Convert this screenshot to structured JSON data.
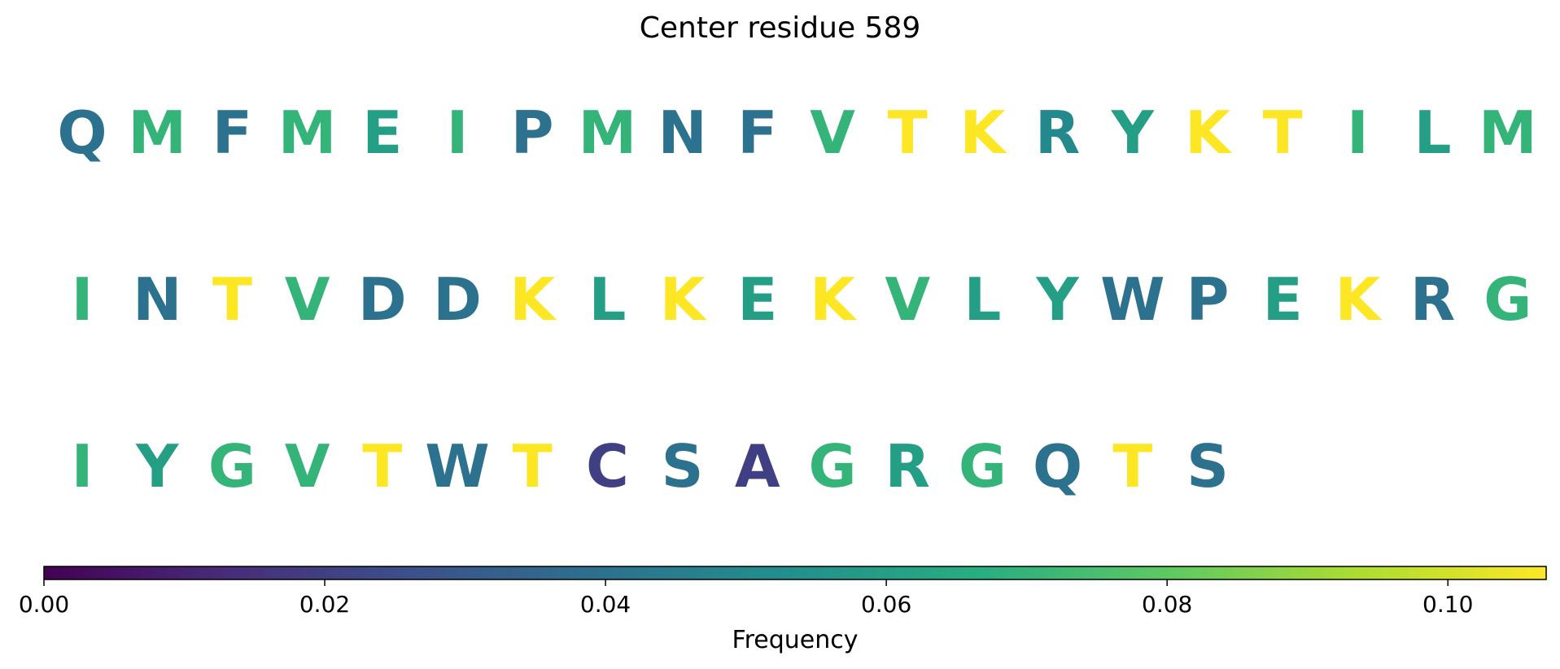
{
  "chart_data": {
    "type": "table",
    "title": "Center residue 589",
    "rows": [
      [
        "Q",
        "M",
        "F",
        "M",
        "E",
        "I",
        "P",
        "M",
        "N",
        "F",
        "V",
        "T",
        "K",
        "R",
        "Y",
        "K",
        "T",
        "I",
        "L",
        "M"
      ],
      [
        "I",
        "N",
        "T",
        "V",
        "D",
        "D",
        "K",
        "L",
        "K",
        "E",
        "K",
        "V",
        "L",
        "Y",
        "W",
        "P",
        "E",
        "K",
        "R",
        "G"
      ],
      [
        "I",
        "Y",
        "G",
        "V",
        "T",
        "W",
        "T",
        "C",
        "S",
        "A",
        "G",
        "R",
        "G",
        "Q",
        "T",
        "S"
      ]
    ],
    "frequencies": [
      [
        0.04,
        0.07,
        0.04,
        0.07,
        0.06,
        0.07,
        0.04,
        0.07,
        0.04,
        0.04,
        0.07,
        0.107,
        0.107,
        0.05,
        0.06,
        0.107,
        0.107,
        0.07,
        0.06,
        0.07
      ],
      [
        0.07,
        0.04,
        0.107,
        0.07,
        0.04,
        0.04,
        0.107,
        0.06,
        0.107,
        0.06,
        0.107,
        0.07,
        0.06,
        0.06,
        0.04,
        0.04,
        0.06,
        0.107,
        0.04,
        0.07
      ],
      [
        0.07,
        0.06,
        0.07,
        0.07,
        0.107,
        0.04,
        0.107,
        0.02,
        0.04,
        0.02,
        0.07,
        0.06,
        0.07,
        0.04,
        0.107,
        0.04
      ]
    ],
    "colorbar": {
      "label": "Frequency",
      "range": [
        0,
        0.107
      ],
      "ticks": [
        0.0,
        0.02,
        0.04,
        0.06,
        0.08,
        0.1
      ],
      "tick_labels": [
        "0.00",
        "0.02",
        "0.04",
        "0.06",
        "0.08",
        "0.10"
      ],
      "colormap": "viridis"
    }
  }
}
